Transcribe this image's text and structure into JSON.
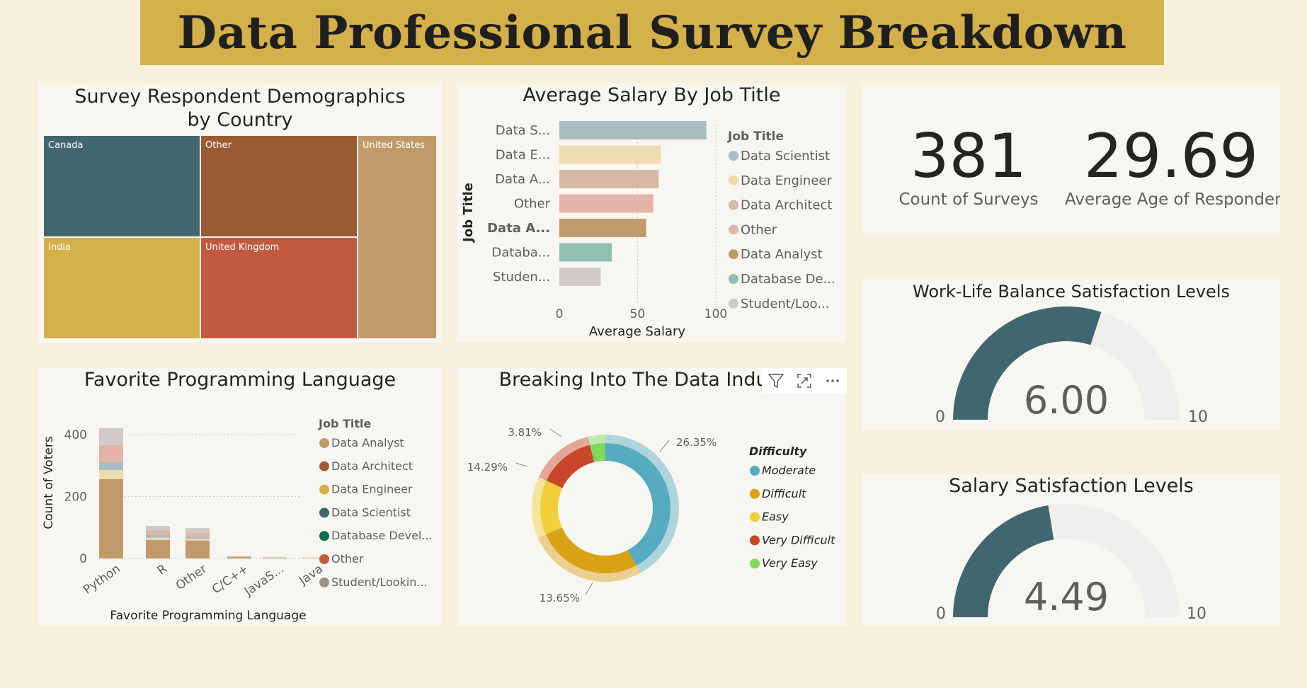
{
  "page": {
    "title": "Data Professional Survey Breakdown"
  },
  "treemap": {
    "title": "Survey Respondent Demographics by Country",
    "tiles": [
      {
        "label": "Canada",
        "color": "#41666f"
      },
      {
        "label": "Other",
        "color": "#9b5b36"
      },
      {
        "label": "United States",
        "color": "#c19a6b"
      },
      {
        "label": "India",
        "color": "#d4b04a"
      },
      {
        "label": "United Kingdom",
        "color": "#c25a3f"
      }
    ]
  },
  "salary_chart": {
    "title": "Average Salary By Job Title",
    "legend_title": "Job Title",
    "legend": [
      {
        "label": "Data Scientist",
        "color": "#a9bcc0"
      },
      {
        "label": "Data Engineer",
        "color": "#ecdcb0"
      },
      {
        "label": "Data Architect",
        "color": "#d6b8a6"
      },
      {
        "label": "Other",
        "color": "#e3b4a9"
      },
      {
        "label": "Data Analyst",
        "color": "#c19a6b"
      },
      {
        "label": "Database De...",
        "color": "#8fbfb0"
      },
      {
        "label": "Student/Loo...",
        "color": "#cfcbc6"
      }
    ]
  },
  "kpis": {
    "count_value": "381",
    "count_label": "Count of Surveys",
    "age_value": "29.69",
    "age_label": "Average Age of Respondents"
  },
  "gauge_wlb": {
    "title": "Work-Life Balance Satisfaction Levels",
    "value": 6.0,
    "display": "6.00",
    "min_label": "0",
    "max_label": "10",
    "min": 0,
    "max": 10
  },
  "gauge_salary": {
    "title": "Salary Satisfaction Levels",
    "value": 4.49,
    "display": "4.49",
    "min_label": "0",
    "max_label": "10",
    "min": 0,
    "max": 10
  },
  "language_chart": {
    "title": "Favorite Programming Language",
    "legend_title": "Job Title",
    "legend": [
      {
        "label": "Data Analyst",
        "color": "#c19a6b"
      },
      {
        "label": "Data Architect",
        "color": "#9b5b36"
      },
      {
        "label": "Data Engineer",
        "color": "#d4b04a"
      },
      {
        "label": "Data Scientist",
        "color": "#41666f"
      },
      {
        "label": "Database Devel...",
        "color": "#0b6e4f"
      },
      {
        "label": "Other",
        "color": "#c25a3f"
      },
      {
        "label": "Student/Lookin...",
        "color": "#9a928a"
      }
    ]
  },
  "donut_chart": {
    "title": "Breaking Into The Data Industry",
    "legend_title": "Difficulty",
    "legend": [
      {
        "label": "Moderate",
        "color": "#57abc0"
      },
      {
        "label": "Difficult",
        "color": "#d9a116"
      },
      {
        "label": "Easy",
        "color": "#f0cf3a"
      },
      {
        "label": "Very Difficult",
        "color": "#c9462a"
      },
      {
        "label": "Very Easy",
        "color": "#7fd95a"
      }
    ],
    "labels": [
      "26.35%",
      "13.65%",
      "14.29%",
      "3.81%"
    ]
  },
  "chart_data": [
    {
      "type": "bar",
      "title": "Average Salary By Job Title",
      "orientation": "horizontal",
      "xlabel": "Average Salary",
      "ylabel": "Job Title",
      "xlim": [
        0,
        100
      ],
      "x_ticks": [
        "0",
        "50",
        "100"
      ],
      "categories": [
        "Data S...",
        "Data E...",
        "Data A...",
        "Other",
        "Data A...",
        "Databa...",
        "Studen..."
      ],
      "values": [
        94,
        65,
        63.5,
        60,
        55.5,
        33.5,
        26.5
      ],
      "colors": [
        "#a9bcc0",
        "#ecdcb0",
        "#d6b8a6",
        "#e3b4a9",
        "#c19a6b",
        "#8fbfb0",
        "#cfcbc6"
      ],
      "grid": true
    },
    {
      "type": "bar",
      "stacked": true,
      "title": "Favorite Programming Language",
      "xlabel": "Favorite Programming Language",
      "ylabel": "Count of Voters",
      "ylim": [
        0,
        420
      ],
      "y_ticks": [
        "0",
        "200",
        "400"
      ],
      "categories": [
        "Python",
        "R",
        "Other",
        "C/C++",
        "JavaS...",
        "Java"
      ],
      "series": [
        {
          "name": "Data Analyst",
          "color": "#c19a6b",
          "values": [
            256,
            60,
            58,
            5,
            2,
            1
          ]
        },
        {
          "name": "Data Architect",
          "color": "#9b5b36",
          "values": [
            0,
            0,
            0,
            0,
            0,
            0
          ]
        },
        {
          "name": "Data Engineer",
          "color": "#ecdcb0",
          "values": [
            30,
            7,
            6,
            0,
            1,
            0
          ]
        },
        {
          "name": "Data Scientist",
          "color": "#a9bcc0",
          "values": [
            25,
            10,
            6,
            1,
            0,
            0
          ]
        },
        {
          "name": "Database Devel...",
          "color": "#8fbfb0",
          "values": [
            0,
            0,
            0,
            0,
            0,
            0
          ]
        },
        {
          "name": "Other",
          "color": "#e3b4a9",
          "values": [
            55,
            15,
            14,
            1,
            1,
            1
          ]
        },
        {
          "name": "Student/Lookin...",
          "color": "#cfcbc6",
          "values": [
            55,
            13,
            14,
            1,
            1,
            1
          ]
        }
      ],
      "grid": true
    },
    {
      "type": "pie",
      "donut": true,
      "title": "Breaking Into The Data Industry",
      "categories": [
        "Moderate",
        "Difficult",
        "Easy",
        "Very Difficult",
        "Very Easy"
      ],
      "values": [
        42.3,
        26.35,
        13.65,
        14.29,
        3.81
      ],
      "colors": [
        "#57abc0",
        "#d9a116",
        "#f0cf3a",
        "#c9462a",
        "#7fd95a"
      ]
    },
    {
      "type": "treemap",
      "title": "Survey Respondent Demographics by Country",
      "categories": [
        "Canada",
        "Other",
        "United States",
        "India",
        "United Kingdom"
      ]
    }
  ]
}
